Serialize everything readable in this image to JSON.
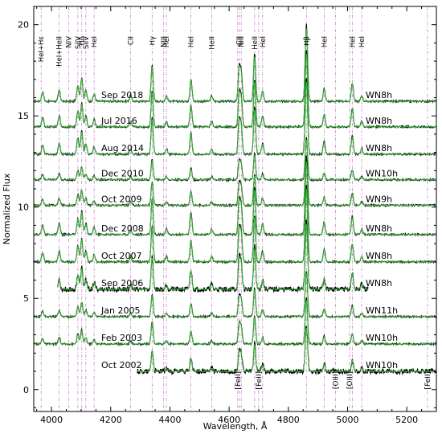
{
  "chart_data": {
    "type": "line",
    "xlabel": "Wavelength, Å",
    "ylabel": "Normalized Flux",
    "xlim": [
      3940,
      5300
    ],
    "ylim": [
      -1.2,
      21
    ],
    "x_ticks": [
      {
        "value": 4000,
        "label": "4000"
      },
      {
        "value": 4200,
        "label": "4200"
      },
      {
        "value": 4400,
        "label": "4400"
      },
      {
        "value": 4600,
        "label": "4600"
      },
      {
        "value": 4800,
        "label": "4800"
      },
      {
        "value": 5000,
        "label": "5000"
      },
      {
        "value": 5200,
        "label": "5200"
      }
    ],
    "y_ticks": [
      {
        "value": 0,
        "label": "0"
      },
      {
        "value": 5,
        "label": "5"
      },
      {
        "value": 10,
        "label": "10"
      },
      {
        "value": 15,
        "label": "15"
      },
      {
        "value": 20,
        "label": "20"
      }
    ],
    "colors": {
      "observed": "#000000",
      "model": "#33bb33",
      "line_marker": "#cc88cc"
    },
    "epochs": [
      {
        "label": "Sep 2018",
        "class": "WN8h",
        "offset": 15.8,
        "scale": 1.0,
        "x_start": 3940,
        "x_end": 5300
      },
      {
        "label": "Jul 2016",
        "class": "WN8h",
        "offset": 14.4,
        "scale": 1.0,
        "x_start": 3940,
        "x_end": 5300
      },
      {
        "label": "Aug 2014",
        "class": "WN8h",
        "offset": 12.9,
        "scale": 1.0,
        "x_start": 3940,
        "x_end": 5300
      },
      {
        "label": "Dec 2010",
        "class": "WN10h",
        "offset": 11.5,
        "scale": 0.55,
        "x_start": 3940,
        "x_end": 5300
      },
      {
        "label": "Oct 2009",
        "class": "WN9h",
        "offset": 10.1,
        "scale": 0.65,
        "x_start": 3940,
        "x_end": 5300
      },
      {
        "label": "Dec 2008",
        "class": "WN8h",
        "offset": 8.5,
        "scale": 1.0,
        "x_start": 3940,
        "x_end": 5300
      },
      {
        "label": "Oct 2007",
        "class": "WN8h",
        "offset": 7.0,
        "scale": 1.0,
        "x_start": 3940,
        "x_end": 5300
      },
      {
        "label": "Sep 2006",
        "class": "WN8h",
        "offset": 5.5,
        "scale": 0.9,
        "x_start": 4020,
        "x_end": 5070
      },
      {
        "label": "Jan 2005",
        "class": "WN11h",
        "offset": 4.0,
        "scale": 0.6,
        "x_start": 3940,
        "x_end": 5300
      },
      {
        "label": "Feb 2003",
        "class": "WN10h",
        "offset": 2.5,
        "scale": 0.6,
        "x_start": 3940,
        "x_end": 5300
      },
      {
        "label": "Oct 2002",
        "class": "WN10h",
        "offset": 1.0,
        "scale": 0.6,
        "x_start": 4290,
        "x_end": 5300
      }
    ],
    "lines_top": [
      {
        "wl": 3965,
        "label": "HeI+Hε"
      },
      {
        "wl": 4026,
        "label": "HeI+HeII"
      },
      {
        "wl": 4058,
        "label": "NIV"
      },
      {
        "wl": 4089,
        "label": "SiIV"
      },
      {
        "wl": 4102,
        "label": "Hδ"
      },
      {
        "wl": 4116,
        "label": "SiIV"
      },
      {
        "wl": 4144,
        "label": "HeI"
      },
      {
        "wl": 4267,
        "label": "CII"
      },
      {
        "wl": 4340,
        "label": "Hγ"
      },
      {
        "wl": 4379,
        "label": "NIII"
      },
      {
        "wl": 4388,
        "label": "HeI"
      },
      {
        "wl": 4471,
        "label": "HeI"
      },
      {
        "wl": 4541,
        "label": "HeII"
      },
      {
        "wl": 4634,
        "label": "CII"
      },
      {
        "wl": 4641,
        "label": "NIII"
      },
      {
        "wl": 4686,
        "label": "HeII"
      },
      {
        "wl": 4713,
        "label": "HeI"
      },
      {
        "wl": 4861,
        "label": "Hβ"
      },
      {
        "wl": 4921,
        "label": "HeI"
      },
      {
        "wl": 5016,
        "label": "HeI"
      },
      {
        "wl": 5048,
        "label": "HeI"
      }
    ],
    "lines_bottom": [
      {
        "wl": 4629,
        "label": "[FeII]"
      },
      {
        "wl": 4700,
        "label": "[FeII]"
      },
      {
        "wl": 4959,
        "label": "[OIII]"
      },
      {
        "wl": 5007,
        "label": "[OIII]"
      },
      {
        "wl": 5270,
        "label": "[FeII]"
      }
    ],
    "emission_lines": [
      {
        "wl": 3970,
        "amp": 0.5
      },
      {
        "wl": 4026,
        "amp": 0.6
      },
      {
        "wl": 4089,
        "amp": 0.9
      },
      {
        "wl": 4102,
        "amp": 1.3
      },
      {
        "wl": 4116,
        "amp": 0.6
      },
      {
        "wl": 4144,
        "amp": 0.4
      },
      {
        "wl": 4267,
        "amp": 0.3
      },
      {
        "wl": 4340,
        "amp": 2.0
      },
      {
        "wl": 4388,
        "amp": 0.3
      },
      {
        "wl": 4471,
        "amp": 1.2
      },
      {
        "wl": 4541,
        "amp": 0.3
      },
      {
        "wl": 4634,
        "amp": 1.8
      },
      {
        "wl": 4641,
        "amp": 1.5
      },
      {
        "wl": 4686,
        "amp": 2.6
      },
      {
        "wl": 4713,
        "amp": 0.6
      },
      {
        "wl": 4861,
        "amp": 4.2
      },
      {
        "wl": 4921,
        "amp": 0.7
      },
      {
        "wl": 5016,
        "amp": 1.0
      },
      {
        "wl": 5048,
        "amp": 0.3
      }
    ]
  }
}
